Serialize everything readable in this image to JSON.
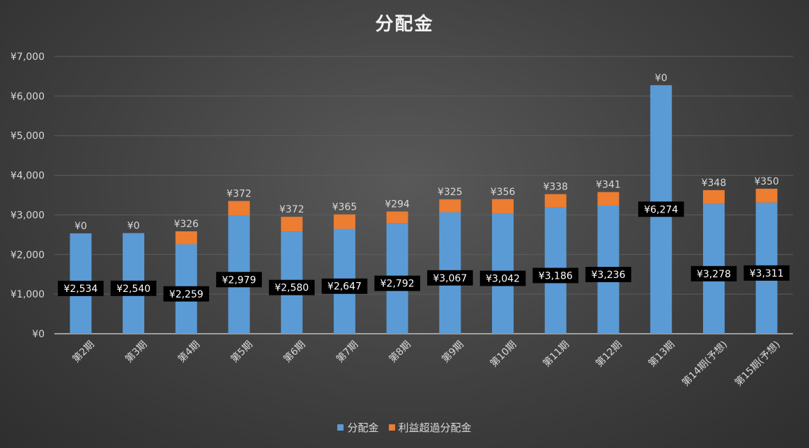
{
  "chart_data": {
    "type": "bar",
    "stacked": true,
    "title": "分配金",
    "categories": [
      "第2期",
      "第3期",
      "第4期",
      "第5期",
      "第6期",
      "第7期",
      "第8期",
      "第9期",
      "第10期",
      "第11期",
      "第12期",
      "第13期",
      "第14期(予想)",
      "第15期(予想)"
    ],
    "series": [
      {
        "name": "分配金",
        "color": "#5b9bd5",
        "values": [
          2534,
          2540,
          2259,
          2979,
          2580,
          2647,
          2792,
          3067,
          3042,
          3186,
          3236,
          6274,
          3278,
          3311
        ],
        "labels": [
          "¥2,534",
          "¥2,540",
          "¥2,259",
          "¥2,979",
          "¥2,580",
          "¥2,647",
          "¥2,792",
          "¥3,067",
          "¥3,042",
          "¥3,186",
          "¥3,236",
          "¥6,274",
          "¥3,278",
          "¥3,311"
        ]
      },
      {
        "name": "利益超過分配金",
        "color": "#ed7d31",
        "values": [
          0,
          0,
          326,
          372,
          372,
          365,
          294,
          325,
          356,
          338,
          341,
          0,
          348,
          350
        ],
        "labels": [
          "¥0",
          "¥0",
          "¥326",
          "¥372",
          "¥372",
          "¥365",
          "¥294",
          "¥325",
          "¥356",
          "¥338",
          "¥341",
          "¥0",
          "¥348",
          "¥350"
        ]
      }
    ],
    "ylim": [
      0,
      7000
    ],
    "yticks": [
      0,
      1000,
      2000,
      3000,
      4000,
      5000,
      6000,
      7000
    ],
    "ytick_labels": [
      "¥0",
      "¥1,000",
      "¥2,000",
      "¥3,000",
      "¥4,000",
      "¥5,000",
      "¥6,000",
      "¥7,000"
    ],
    "grid": true,
    "legend_position": "bottom"
  }
}
